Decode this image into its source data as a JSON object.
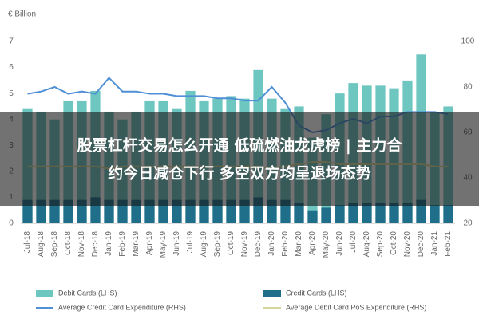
{
  "chart_data": {
    "type": "bar",
    "y_axis_label": "€ Billion",
    "categories": [
      "Jul-18",
      "Aug-18",
      "Sep-18",
      "Oct-18",
      "Nov-18",
      "Dec-18",
      "Jan-19",
      "Feb-19",
      "Mar-19",
      "Apr-19",
      "May-19",
      "Jun-19",
      "Jul-19",
      "Aug-19",
      "Sep-19",
      "Oct-19",
      "Nov-19",
      "Dec-19",
      "Jan-20",
      "Feb-20",
      "Mar-20",
      "Apr-20",
      "May-20",
      "Jun-20",
      "Jul-20",
      "Aug-20",
      "Sep-20",
      "Oct-20",
      "Nov-20",
      "Dec-20",
      "Jan-21",
      "Feb-21"
    ],
    "series": [
      {
        "name": "Debit Cards (LHS)",
        "type": "bar",
        "color": "#6ec6c1",
        "values": [
          4.4,
          4.3,
          4.0,
          4.7,
          4.7,
          5.1,
          4.3,
          4.0,
          4.3,
          4.7,
          4.7,
          4.4,
          5.1,
          4.7,
          4.8,
          4.9,
          4.8,
          5.9,
          4.8,
          4.4,
          4.5,
          3.3,
          4.2,
          5.0,
          5.4,
          5.3,
          5.3,
          5.2,
          5.5,
          6.5,
          4.3,
          4.5
        ]
      },
      {
        "name": "Credit Cards (LHS)",
        "type": "bar",
        "color": "#1f6f8b",
        "values": [
          0.9,
          0.9,
          0.9,
          0.9,
          0.9,
          1.0,
          0.9,
          0.9,
          0.9,
          0.9,
          0.9,
          0.9,
          0.9,
          0.9,
          0.9,
          0.9,
          0.9,
          1.0,
          0.9,
          0.9,
          0.8,
          0.5,
          0.6,
          0.7,
          0.8,
          0.8,
          0.8,
          0.8,
          0.8,
          0.9,
          0.7,
          0.7
        ]
      },
      {
        "name": "Average Credit Card Expenditure (RHS)",
        "type": "line",
        "axis": "y2",
        "color": "#4f8fd6",
        "values": [
          77,
          78,
          80,
          77,
          78,
          77,
          84,
          78,
          78,
          77,
          77,
          76,
          76,
          76,
          75,
          75,
          74,
          74,
          80,
          73,
          63,
          60,
          61,
          64,
          66,
          64,
          67,
          67,
          69,
          69,
          69,
          68
        ]
      },
      {
        "name": "Average Debit Card PoS Expenditure (RHS)",
        "type": "line",
        "axis": "y2",
        "color": "#d6d69a",
        "values": [
          45,
          45,
          45,
          45,
          45,
          45,
          44,
          45,
          45,
          45,
          45,
          45,
          45,
          45,
          45,
          45,
          45,
          45,
          44,
          45,
          46,
          47,
          47,
          46,
          46,
          46,
          46,
          46,
          46,
          46,
          45,
          45
        ]
      }
    ],
    "ylim": [
      0,
      7
    ],
    "yticks": [
      0,
      1,
      2,
      3,
      4,
      5,
      6,
      7
    ],
    "y2lim": [
      20,
      100
    ],
    "y2ticks": [
      20,
      40,
      60,
      80,
      100
    ],
    "grid": false
  },
  "overlay": {
    "lines": [
      "股票杠杆交易怎么开通 低硫燃油龙虎榜 | 主力合",
      "约今日减仓下行 多空双方均呈退场态势"
    ]
  }
}
